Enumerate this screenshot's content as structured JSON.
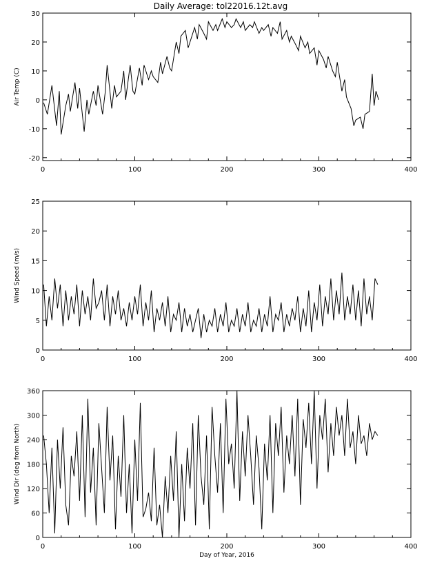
{
  "title": "Daily Average: tol22016.12t.avg",
  "chart_data": [
    {
      "type": "line",
      "ylabel": "Air Temp (C)",
      "xlabel": "",
      "xlim": [
        0,
        400
      ],
      "ylim": [
        -21,
        30
      ],
      "xticks": [
        0,
        100,
        200,
        300,
        400
      ],
      "yticks": [
        -20,
        -10,
        0,
        10,
        20,
        30
      ],
      "series": [
        {
          "x": [
            1,
            5,
            10,
            15,
            18,
            20,
            25,
            28,
            30,
            35,
            38,
            40,
            45,
            48,
            50,
            55,
            58,
            60,
            65,
            68,
            70,
            75,
            78,
            80,
            85,
            88,
            90,
            95,
            98,
            100,
            105,
            108,
            110,
            115,
            118,
            120,
            125,
            128,
            130,
            135,
            138,
            140,
            145,
            148,
            150,
            155,
            158,
            160,
            165,
            168,
            170,
            175,
            178,
            180,
            185,
            188,
            190,
            195,
            198,
            200,
            205,
            208,
            210,
            215,
            218,
            220,
            225,
            228,
            230,
            235,
            238,
            240,
            245,
            248,
            250,
            255,
            258,
            260,
            265,
            268,
            270,
            275,
            278,
            280,
            285,
            288,
            290,
            295,
            298,
            300,
            305,
            308,
            310,
            315,
            318,
            320,
            325,
            328,
            330,
            335,
            338,
            340,
            345,
            348,
            350,
            355,
            358,
            360,
            362,
            365
          ],
          "y": [
            -1,
            -5,
            5,
            -9,
            3,
            -12,
            -2,
            2,
            -4,
            6,
            -3,
            4,
            -11,
            0,
            -5,
            3,
            -2,
            5,
            -5,
            3,
            12,
            -3,
            5,
            1,
            3,
            10,
            0,
            12,
            3,
            2,
            11,
            5,
            12,
            7,
            10,
            8,
            6,
            13,
            9,
            15,
            11,
            10,
            20,
            16,
            22,
            24,
            18,
            20,
            25,
            21,
            26,
            23,
            21,
            27,
            24,
            26,
            24,
            28,
            25,
            27,
            25,
            26,
            28,
            25,
            27,
            24,
            26,
            25,
            27,
            23,
            25,
            24,
            26,
            22,
            25,
            23,
            27,
            21,
            24,
            20,
            22,
            19,
            17,
            22,
            18,
            20,
            16,
            18,
            12,
            17,
            14,
            11,
            15,
            10,
            8,
            13,
            3,
            7,
            1,
            -3,
            -9,
            -7,
            -6,
            -10,
            -5,
            -4,
            9,
            -2,
            3,
            0
          ]
        }
      ]
    },
    {
      "type": "line",
      "ylabel": "Wind Speed (m/s)",
      "xlabel": "",
      "xlim": [
        0,
        400
      ],
      "ylim": [
        0,
        25
      ],
      "xticks": [
        0,
        100,
        200,
        300,
        400
      ],
      "yticks": [
        0,
        5,
        10,
        15,
        20,
        25
      ],
      "series": [
        {
          "x": [
            1,
            4,
            7,
            10,
            13,
            16,
            19,
            22,
            25,
            28,
            31,
            34,
            37,
            40,
            43,
            46,
            49,
            52,
            55,
            58,
            61,
            64,
            67,
            70,
            73,
            76,
            79,
            82,
            85,
            88,
            91,
            94,
            97,
            100,
            103,
            106,
            109,
            112,
            115,
            118,
            121,
            124,
            127,
            130,
            133,
            136,
            139,
            142,
            145,
            148,
            151,
            154,
            157,
            160,
            163,
            166,
            169,
            172,
            175,
            178,
            181,
            184,
            187,
            190,
            193,
            196,
            199,
            202,
            205,
            208,
            211,
            214,
            217,
            220,
            223,
            226,
            229,
            232,
            235,
            238,
            241,
            244,
            247,
            250,
            253,
            256,
            259,
            262,
            265,
            268,
            271,
            274,
            277,
            280,
            283,
            286,
            289,
            292,
            295,
            298,
            301,
            304,
            307,
            310,
            313,
            316,
            319,
            322,
            325,
            328,
            331,
            334,
            337,
            340,
            343,
            346,
            349,
            352,
            355,
            358,
            361,
            364
          ],
          "y": [
            11,
            4,
            9,
            5,
            12,
            7,
            11,
            4,
            10,
            5,
            9,
            6,
            11,
            4,
            10,
            6,
            9,
            5,
            12,
            7,
            8,
            10,
            5,
            11,
            4,
            9,
            6,
            10,
            5,
            7,
            4,
            8,
            5,
            9,
            6,
            11,
            4,
            8,
            5,
            10,
            3,
            7,
            5,
            8,
            4,
            9,
            3,
            6,
            5,
            8,
            3,
            7,
            4,
            6,
            3,
            5,
            7,
            2,
            6,
            3,
            5,
            4,
            7,
            3,
            6,
            4,
            8,
            3,
            5,
            4,
            7,
            3,
            6,
            4,
            8,
            3,
            5,
            4,
            7,
            3,
            6,
            4,
            9,
            3,
            6,
            5,
            8,
            3,
            6,
            4,
            7,
            5,
            9,
            3,
            7,
            4,
            10,
            3,
            8,
            5,
            11,
            4,
            9,
            6,
            12,
            5,
            10,
            6,
            13,
            5,
            9,
            6,
            11,
            5,
            10,
            4,
            12,
            6,
            9,
            5,
            12,
            11
          ]
        }
      ]
    },
    {
      "type": "line",
      "ylabel": "Wind Dir (deg from North)",
      "xlabel": "Day of Year, 2016",
      "xlim": [
        0,
        400
      ],
      "ylim": [
        0,
        360
      ],
      "xticks": [
        0,
        100,
        200,
        300,
        400
      ],
      "yticks": [
        0,
        60,
        120,
        180,
        240,
        300,
        360
      ],
      "series": [
        {
          "x": [
            1,
            4,
            7,
            10,
            13,
            16,
            19,
            22,
            25,
            28,
            31,
            34,
            37,
            40,
            43,
            46,
            49,
            52,
            55,
            58,
            61,
            64,
            67,
            70,
            73,
            76,
            79,
            82,
            85,
            88,
            91,
            94,
            97,
            100,
            103,
            106,
            109,
            112,
            115,
            118,
            121,
            124,
            127,
            130,
            133,
            136,
            139,
            142,
            145,
            148,
            151,
            154,
            157,
            160,
            163,
            166,
            169,
            172,
            175,
            178,
            181,
            184,
            187,
            190,
            193,
            196,
            199,
            202,
            205,
            208,
            211,
            214,
            217,
            220,
            223,
            226,
            229,
            232,
            235,
            238,
            241,
            244,
            247,
            250,
            253,
            256,
            259,
            262,
            265,
            268,
            271,
            274,
            277,
            280,
            283,
            286,
            289,
            292,
            295,
            298,
            301,
            304,
            307,
            310,
            313,
            316,
            319,
            322,
            325,
            328,
            331,
            334,
            337,
            340,
            343,
            346,
            349,
            352,
            355,
            358,
            361,
            364
          ],
          "y": [
            250,
            180,
            60,
            220,
            10,
            240,
            120,
            270,
            80,
            30,
            200,
            150,
            260,
            90,
            300,
            50,
            340,
            110,
            220,
            30,
            280,
            170,
            60,
            320,
            140,
            250,
            20,
            200,
            100,
            300,
            60,
            180,
            10,
            240,
            90,
            330,
            50,
            70,
            110,
            40,
            220,
            30,
            80,
            0,
            150,
            60,
            200,
            90,
            260,
            0,
            180,
            40,
            220,
            120,
            280,
            30,
            300,
            150,
            80,
            250,
            20,
            320,
            200,
            110,
            280,
            60,
            340,
            180,
            230,
            120,
            360,
            90,
            260,
            150,
            300,
            200,
            80,
            250,
            170,
            20,
            230,
            140,
            300,
            60,
            280,
            200,
            320,
            110,
            250,
            180,
            300,
            150,
            340,
            80,
            290,
            220,
            330,
            180,
            360,
            120,
            300,
            240,
            340,
            160,
            280,
            200,
            320,
            250,
            300,
            200,
            340,
            220,
            260,
            180,
            300,
            230,
            250,
            200,
            280,
            240,
            260,
            250
          ]
        }
      ]
    }
  ]
}
